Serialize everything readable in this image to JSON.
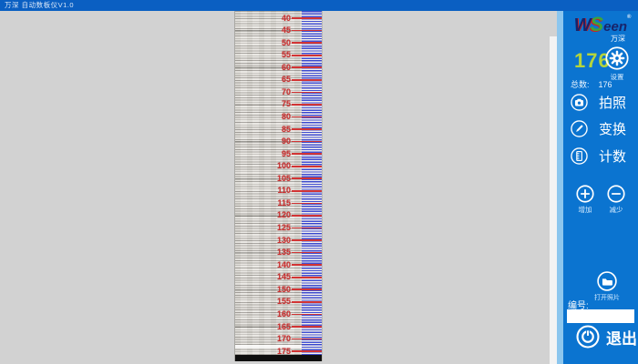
{
  "window": {
    "title": "万深  自动数板仪V1.0"
  },
  "logo": {
    "w": "W",
    "s": "S",
    "rest": "een",
    "reg": "®",
    "sub": "万深"
  },
  "sidebar": {
    "count_display": "176",
    "settings_label": "设置",
    "total_label": "总数:",
    "total_value": "176",
    "photo_label": "拍照",
    "transform_label": "变换",
    "count_label": "计数",
    "increase_label": "增加",
    "decrease_label": "减少",
    "open_photo_label": "打开照片",
    "serial_label": "编号:",
    "serial_value": "",
    "exit_label": "退出",
    "accent_color": "#0b74d0",
    "count_color": "#b5d53c"
  },
  "strip": {
    "marker_color": "#c93131",
    "tick_color": "#3240c8",
    "labels": [
      "40",
      "45",
      "50",
      "55",
      "60",
      "65",
      "70",
      "75",
      "80",
      "85",
      "90",
      "95",
      "100",
      "105",
      "110",
      "115",
      "120",
      "125",
      "130",
      "135",
      "140",
      "145",
      "150",
      "155",
      "160",
      "165",
      "170",
      "175"
    ]
  }
}
